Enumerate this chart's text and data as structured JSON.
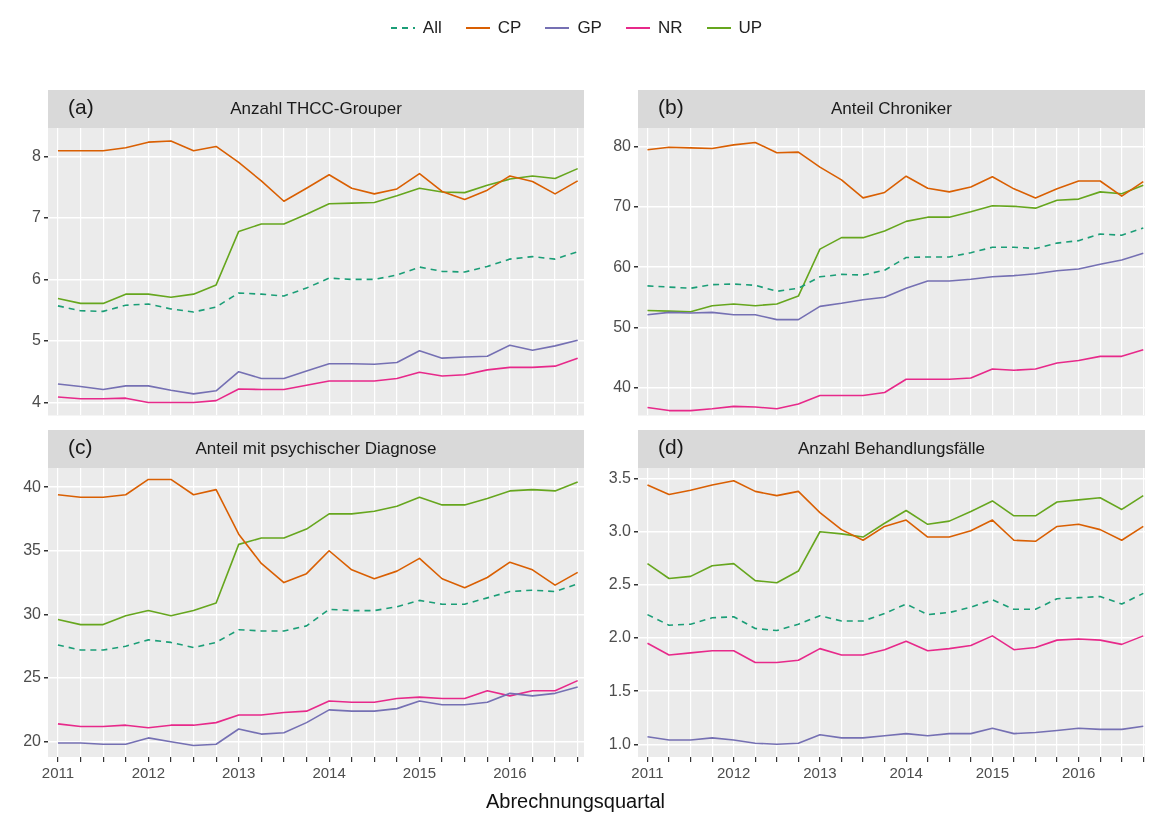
{
  "chart_data": [
    {
      "type": "line",
      "title": "Anzahl THCC-Grouper",
      "annotations": [
        "(a)"
      ],
      "legend": "top",
      "grid": true,
      "tick_labels": "y",
      "x": [
        2011,
        2011.25,
        2011.5,
        2011.75,
        2012,
        2012.25,
        2012.5,
        2012.75,
        2013,
        2013.25,
        2013.5,
        2013.75,
        2014,
        2014.25,
        2014.5,
        2014.75,
        2015,
        2015.25,
        2015.5,
        2015.75,
        2016,
        2016.25,
        2016.5,
        2016.75
      ],
      "xlim": [
        2010.89,
        2016.82
      ],
      "xticks": [
        2011,
        {
          "value": 2011.25,
          "label": null
        },
        {
          "value": 2011.5,
          "label": null
        },
        {
          "value": 2011.75,
          "label": null
        },
        2012,
        {
          "value": 2012.25,
          "label": null
        },
        {
          "value": 2012.5,
          "label": null
        },
        {
          "value": 2012.75,
          "label": null
        },
        2013,
        {
          "value": 2013.25,
          "label": null
        },
        {
          "value": 2013.5,
          "label": null
        },
        {
          "value": 2013.75,
          "label": null
        },
        2014,
        {
          "value": 2014.25,
          "label": null
        },
        {
          "value": 2014.5,
          "label": null
        },
        {
          "value": 2014.75,
          "label": null
        },
        2015,
        {
          "value": 2015.25,
          "label": null
        },
        {
          "value": 2015.5,
          "label": null
        },
        {
          "value": 2015.75,
          "label": null
        },
        2016,
        {
          "value": 2016.25,
          "label": null
        },
        {
          "value": 2016.5,
          "label": null
        },
        {
          "value": 2016.75,
          "label": null
        }
      ],
      "ylim": [
        3.79,
        8.46
      ],
      "yticks": [
        4,
        5,
        6,
        7,
        8
      ],
      "series": [
        {
          "name": "All",
          "color": "#1b9e77",
          "line_style": "dashed",
          "values": [
            5.57,
            5.49,
            5.48,
            5.58,
            5.6,
            5.52,
            5.47,
            5.55,
            5.78,
            5.76,
            5.73,
            5.86,
            6.02,
            6.0,
            6.0,
            6.07,
            6.2,
            6.13,
            6.12,
            6.21,
            6.33,
            6.37,
            6.33,
            6.45
          ]
        },
        {
          "name": "CP",
          "color": "#d95f02",
          "values": [
            8.09,
            8.09,
            8.09,
            8.14,
            8.23,
            8.25,
            8.09,
            8.16,
            7.9,
            7.6,
            7.27,
            7.48,
            7.7,
            7.48,
            7.39,
            7.47,
            7.72,
            7.43,
            7.3,
            7.45,
            7.68,
            7.59,
            7.39,
            7.6
          ]
        },
        {
          "name": "GP",
          "color": "#7570b3",
          "values": [
            4.3,
            4.26,
            4.21,
            4.27,
            4.27,
            4.2,
            4.14,
            4.19,
            4.5,
            4.39,
            4.39,
            4.51,
            4.63,
            4.63,
            4.62,
            4.65,
            4.84,
            4.72,
            4.74,
            4.75,
            4.93,
            4.85,
            4.92,
            5.01
          ]
        },
        {
          "name": "NR",
          "color": "#e7298a",
          "values": [
            4.09,
            4.06,
            4.06,
            4.07,
            4.0,
            4.0,
            4.0,
            4.03,
            4.22,
            4.21,
            4.21,
            4.28,
            4.35,
            4.35,
            4.35,
            4.39,
            4.49,
            4.43,
            4.45,
            4.53,
            4.57,
            4.57,
            4.59,
            4.72
          ]
        },
        {
          "name": "UP",
          "color": "#66a61e",
          "values": [
            5.69,
            5.61,
            5.61,
            5.76,
            5.76,
            5.71,
            5.76,
            5.91,
            6.78,
            6.9,
            6.9,
            7.06,
            7.23,
            7.24,
            7.25,
            7.36,
            7.48,
            7.42,
            7.41,
            7.53,
            7.63,
            7.68,
            7.64,
            7.8
          ]
        }
      ]
    },
    {
      "type": "line",
      "title": "Anteil Chroniker",
      "annotations": [
        "(b)"
      ],
      "grid": true,
      "tick_labels": "y",
      "x": [
        2011,
        2011.25,
        2011.5,
        2011.75,
        2012,
        2012.25,
        2012.5,
        2012.75,
        2013,
        2013.25,
        2013.5,
        2013.75,
        2014,
        2014.25,
        2014.5,
        2014.75,
        2015,
        2015.25,
        2015.5,
        2015.75,
        2016,
        2016.25,
        2016.5,
        2016.75
      ],
      "xlim": [
        2010.89,
        2016.77
      ],
      "xticks": [
        2011,
        {
          "value": 2011.25,
          "label": null
        },
        {
          "value": 2011.5,
          "label": null
        },
        {
          "value": 2011.75,
          "label": null
        },
        2012,
        {
          "value": 2012.25,
          "label": null
        },
        {
          "value": 2012.5,
          "label": null
        },
        {
          "value": 2012.75,
          "label": null
        },
        2013,
        {
          "value": 2013.25,
          "label": null
        },
        {
          "value": 2013.5,
          "label": null
        },
        {
          "value": 2013.75,
          "label": null
        },
        2014,
        {
          "value": 2014.25,
          "label": null
        },
        {
          "value": 2014.5,
          "label": null
        },
        {
          "value": 2014.75,
          "label": null
        },
        2015,
        {
          "value": 2015.25,
          "label": null
        },
        {
          "value": 2015.5,
          "label": null
        },
        {
          "value": 2015.75,
          "label": null
        },
        2016,
        {
          "value": 2016.25,
          "label": null
        },
        {
          "value": 2016.5,
          "label": null
        },
        {
          "value": 2016.75,
          "label": null
        }
      ],
      "ylim": [
        35.4,
        83.1
      ],
      "yticks": [
        40,
        50,
        60,
        70,
        80
      ],
      "series": [
        {
          "name": "All",
          "color": "#1b9e77",
          "line_style": "dashed",
          "values": [
            56.9,
            56.7,
            56.5,
            57.1,
            57.2,
            57.0,
            56,
            56.5,
            58.4,
            58.8,
            58.7,
            59.5,
            61.6,
            61.7,
            61.7,
            62.4,
            63.3,
            63.3,
            63.1,
            64,
            64.4,
            65.5,
            65.3,
            66.5
          ]
        },
        {
          "name": "CP",
          "color": "#d95f02",
          "values": [
            79.5,
            79.9,
            79.8,
            79.7,
            80.3,
            80.7,
            79,
            79.1,
            76.6,
            74.5,
            71.5,
            72.4,
            75.1,
            73.1,
            72.5,
            73.3,
            75,
            73,
            71.5,
            73,
            74.3,
            74.3,
            71.8,
            74.2
          ]
        },
        {
          "name": "GP",
          "color": "#7570b3",
          "values": [
            52.1,
            52.5,
            52.4,
            52.5,
            52.1,
            52.1,
            51.3,
            51.3,
            53.5,
            54,
            54.6,
            55,
            56.5,
            57.7,
            57.7,
            58,
            58.4,
            58.6,
            58.9,
            59.4,
            59.7,
            60.5,
            61.2,
            62.3
          ]
        },
        {
          "name": "NR",
          "color": "#e7298a",
          "values": [
            36.7,
            36.2,
            36.2,
            36.5,
            36.9,
            36.8,
            36.5,
            37.3,
            38.7,
            38.7,
            38.7,
            39.2,
            41.4,
            41.4,
            41.4,
            41.6,
            43.1,
            42.9,
            43.1,
            44.1,
            44.5,
            45.2,
            45.2,
            46.3
          ]
        },
        {
          "name": "UP",
          "color": "#66a61e",
          "values": [
            52.8,
            52.7,
            52.6,
            53.6,
            53.9,
            53.6,
            53.9,
            55.2,
            63,
            64.9,
            64.9,
            66,
            67.6,
            68.3,
            68.3,
            69.2,
            70.2,
            70.1,
            69.8,
            71.1,
            71.3,
            72.5,
            72.2,
            73.6
          ]
        }
      ]
    },
    {
      "type": "line",
      "title": "Anteil mit psychischer Diagnose",
      "annotations": [
        "(c)"
      ],
      "xlabel": "Abrechnungsquartal",
      "grid": true,
      "x": [
        2011,
        2011.25,
        2011.5,
        2011.75,
        2012,
        2012.25,
        2012.5,
        2012.75,
        2013,
        2013.25,
        2013.5,
        2013.75,
        2014,
        2014.25,
        2014.5,
        2014.75,
        2015,
        2015.25,
        2015.5,
        2015.75,
        2016,
        2016.25,
        2016.5,
        2016.75
      ],
      "xlim": [
        2010.89,
        2016.82
      ],
      "xticks": [
        2011,
        {
          "value": 2011.25,
          "label": null
        },
        {
          "value": 2011.5,
          "label": null
        },
        {
          "value": 2011.75,
          "label": null
        },
        2012,
        {
          "value": 2012.25,
          "label": null
        },
        {
          "value": 2012.5,
          "label": null
        },
        {
          "value": 2012.75,
          "label": null
        },
        2013,
        {
          "value": 2013.25,
          "label": null
        },
        {
          "value": 2013.5,
          "label": null
        },
        {
          "value": 2013.75,
          "label": null
        },
        2014,
        {
          "value": 2014.25,
          "label": null
        },
        {
          "value": 2014.5,
          "label": null
        },
        {
          "value": 2014.75,
          "label": null
        },
        2015,
        {
          "value": 2015.25,
          "label": null
        },
        {
          "value": 2015.5,
          "label": null
        },
        {
          "value": 2015.75,
          "label": null
        },
        2016,
        {
          "value": 2016.25,
          "label": null
        },
        {
          "value": 2016.5,
          "label": null
        },
        {
          "value": 2016.75,
          "label": null
        }
      ],
      "ylim": [
        18.8,
        41.5
      ],
      "yticks": [
        20,
        25,
        30,
        35,
        40
      ],
      "series": [
        {
          "name": "All",
          "color": "#1b9e77",
          "line_style": "dashed",
          "values": [
            27.6,
            27.2,
            27.2,
            27.5,
            28,
            27.8,
            27.4,
            27.8,
            28.8,
            28.7,
            28.7,
            29.1,
            30.4,
            30.3,
            30.3,
            30.6,
            31.1,
            30.8,
            30.8,
            31.3,
            31.8,
            31.9,
            31.8,
            32.4
          ]
        },
        {
          "name": "CP",
          "color": "#d95f02",
          "values": [
            39.4,
            39.2,
            39.2,
            39.4,
            40.6,
            40.6,
            39.4,
            39.8,
            36.3,
            34,
            32.5,
            33.2,
            35,
            33.5,
            32.8,
            33.4,
            34.4,
            32.8,
            32.1,
            32.9,
            34.1,
            33.5,
            32.3,
            33.3
          ]
        },
        {
          "name": "GP",
          "color": "#7570b3",
          "values": [
            19.9,
            19.9,
            19.8,
            19.8,
            20.3,
            20,
            19.7,
            19.8,
            21,
            20.6,
            20.7,
            21.5,
            22.5,
            22.4,
            22.4,
            22.6,
            23.2,
            22.9,
            22.9,
            23.1,
            23.8,
            23.6,
            23.8,
            24.3
          ]
        },
        {
          "name": "NR",
          "color": "#e7298a",
          "values": [
            21.4,
            21.2,
            21.2,
            21.3,
            21.1,
            21.3,
            21.3,
            21.5,
            22.1,
            22.1,
            22.3,
            22.4,
            23.2,
            23.1,
            23.1,
            23.4,
            23.5,
            23.4,
            23.4,
            24,
            23.6,
            24,
            24,
            24.8
          ]
        },
        {
          "name": "UP",
          "color": "#66a61e",
          "values": [
            29.6,
            29.2,
            29.2,
            29.9,
            30.3,
            29.9,
            30.3,
            30.9,
            35.5,
            36,
            36,
            36.7,
            37.9,
            37.9,
            38.1,
            38.5,
            39.2,
            38.6,
            38.6,
            39.1,
            39.7,
            39.8,
            39.7,
            40.4
          ]
        }
      ]
    },
    {
      "type": "line",
      "title": "Anzahl Behandlungsfälle",
      "annotations": [
        "(d)"
      ],
      "grid": true,
      "x": [
        2011,
        2011.25,
        2011.5,
        2011.75,
        2012,
        2012.25,
        2012.5,
        2012.75,
        2013,
        2013.25,
        2013.5,
        2013.75,
        2014,
        2014.25,
        2014.5,
        2014.75,
        2015,
        2015.25,
        2015.5,
        2015.75,
        2016,
        2016.25,
        2016.5,
        2016.75
      ],
      "xlim": [
        2010.89,
        2016.77
      ],
      "xticks": [
        2011,
        {
          "value": 2011.25,
          "label": null
        },
        {
          "value": 2011.5,
          "label": null
        },
        {
          "value": 2011.75,
          "label": null
        },
        2012,
        {
          "value": 2012.25,
          "label": null
        },
        {
          "value": 2012.5,
          "label": null
        },
        {
          "value": 2012.75,
          "label": null
        },
        2013,
        {
          "value": 2013.25,
          "label": null
        },
        {
          "value": 2013.5,
          "label": null
        },
        {
          "value": 2013.75,
          "label": null
        },
        2014,
        {
          "value": 2014.25,
          "label": null
        },
        {
          "value": 2014.5,
          "label": null
        },
        {
          "value": 2014.75,
          "label": null
        },
        2015,
        {
          "value": 2015.25,
          "label": null
        },
        {
          "value": 2015.5,
          "label": null
        },
        {
          "value": 2015.75,
          "label": null
        },
        2016,
        {
          "value": 2016.25,
          "label": null
        },
        {
          "value": 2016.5,
          "label": null
        },
        {
          "value": 2016.75,
          "label": null
        }
      ],
      "ylim": [
        0.88,
        3.6
      ],
      "yticks": [
        {
          "value": 1,
          "label": "1.0"
        },
        1.5,
        {
          "value": 2,
          "label": "2.0"
        },
        2.5,
        {
          "value": 3,
          "label": "3.0"
        },
        3.5
      ],
      "series": [
        {
          "name": "All",
          "color": "#1b9e77",
          "line_style": "dashed",
          "values": [
            2.22,
            2.12,
            2.13,
            2.19,
            2.2,
            2.09,
            2.07,
            2.13,
            2.21,
            2.16,
            2.16,
            2.23,
            2.32,
            2.22,
            2.24,
            2.29,
            2.36,
            2.27,
            2.27,
            2.37,
            2.38,
            2.39,
            2.32,
            2.42
          ]
        },
        {
          "name": "CP",
          "color": "#d95f02",
          "values": [
            3.44,
            3.35,
            3.39,
            3.44,
            3.48,
            3.38,
            3.34,
            3.38,
            3.18,
            3.02,
            2.92,
            3.05,
            3.11,
            2.95,
            2.95,
            3.01,
            3.11,
            2.92,
            2.91,
            3.05,
            3.07,
            3.02,
            2.92,
            3.05
          ]
        },
        {
          "name": "GP",
          "color": "#7570b3",
          "values": [
            1.07,
            1.04,
            1.04,
            1.06,
            1.04,
            1.01,
            1.0,
            1.01,
            1.09,
            1.06,
            1.06,
            1.08,
            1.1,
            1.08,
            1.1,
            1.1,
            1.15,
            1.1,
            1.11,
            1.13,
            1.15,
            1.14,
            1.14,
            1.17
          ]
        },
        {
          "name": "NR",
          "color": "#e7298a",
          "values": [
            1.95,
            1.84,
            1.86,
            1.88,
            1.88,
            1.77,
            1.77,
            1.79,
            1.9,
            1.84,
            1.84,
            1.89,
            1.97,
            1.88,
            1.9,
            1.93,
            2.02,
            1.89,
            1.91,
            1.98,
            1.99,
            1.98,
            1.94,
            2.02
          ]
        },
        {
          "name": "UP",
          "color": "#66a61e",
          "values": [
            2.7,
            2.56,
            2.58,
            2.68,
            2.7,
            2.54,
            2.52,
            2.63,
            3.0,
            2.98,
            2.95,
            3.08,
            3.2,
            3.07,
            3.1,
            3.19,
            3.29,
            3.15,
            3.15,
            3.28,
            3.3,
            3.32,
            3.21,
            3.34
          ]
        }
      ]
    }
  ]
}
